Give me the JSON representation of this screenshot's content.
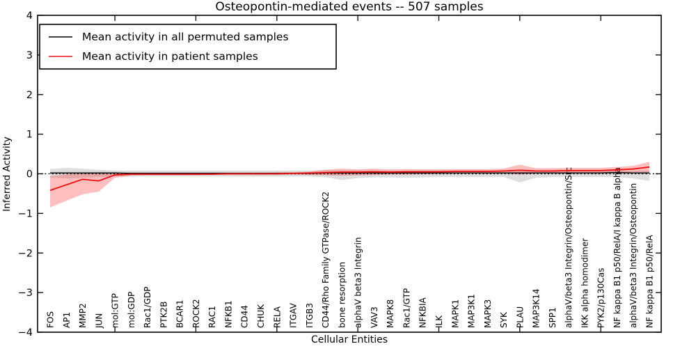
{
  "title": "Osteopontin-mediated events -- 507 samples",
  "chart_data": {
    "type": "line",
    "title": "Osteopontin-mediated events -- 507 samples",
    "xlabel": "Cellular Entities",
    "ylabel": "Inferred Activity",
    "ylim": [
      -4,
      4
    ],
    "ytick_values": [
      4,
      3,
      2,
      1,
      0,
      -1,
      -2,
      -3,
      -4
    ],
    "grid": false,
    "legend_position": "upper left",
    "zero_line": {
      "style": "dotted",
      "color": "#000000",
      "y": 0
    },
    "major_xtick_category_indices": [
      4,
      9,
      14,
      19,
      24,
      29,
      34
    ],
    "categories": [
      "FOS",
      "AP1",
      "MMP2",
      "JUN",
      "mol:GTP",
      "mol:GDP",
      "Rac1/GDP",
      "PTK2B",
      "BCAR1",
      "ROCK2",
      "RAC1",
      "NFKB1",
      "CD44",
      "CHUK",
      "RELA",
      "ITGAV",
      "ITGB3",
      "CD44/Rho Family GTPase/ROCK2",
      "bone resorption",
      "alphaV beta3 Integrin",
      "VAV3",
      "MAPK8",
      "Rac1/GTP",
      "NFKBIA",
      "ILK",
      "MAPK1",
      "MAP3K1",
      "MAPK3",
      "SYK",
      "PLAU",
      "MAP3K14",
      "SPP1",
      "alphaV/beta3 Integrin/Osteopontin/Src",
      "IKK alpha homodimer",
      "PYK2/p130Cas",
      "NF kappa B1 p50/RelA/I kappa B alpha",
      "alphaV/beta3 Integrin/Osteopontin",
      "NF kappa B1 p50/RelA"
    ],
    "series": [
      {
        "name": "Mean activity in all permuted samples",
        "color": "#000000",
        "line_width": 1.5,
        "band_color": "#000000",
        "band_opacity": 0.13,
        "values": [
          0.02,
          0.02,
          0.02,
          0.02,
          0.02,
          0.01,
          0.01,
          0.01,
          0.01,
          0.01,
          0.01,
          0.01,
          0.01,
          0.01,
          0.01,
          0.01,
          0.01,
          0.02,
          0.02,
          0.02,
          0.02,
          0.02,
          0.02,
          0.02,
          0.02,
          0.02,
          0.02,
          0.02,
          0.02,
          0.02,
          0.02,
          0.02,
          0.02,
          0.02,
          0.02,
          0.03,
          0.02,
          0.02
        ],
        "band_upper": [
          0.12,
          0.15,
          0.13,
          0.1,
          0.08,
          0.08,
          0.08,
          0.08,
          0.08,
          0.08,
          0.08,
          0.08,
          0.08,
          0.08,
          0.08,
          0.08,
          0.08,
          0.09,
          0.09,
          0.09,
          0.09,
          0.08,
          0.08,
          0.08,
          0.08,
          0.08,
          0.08,
          0.08,
          0.08,
          0.08,
          0.08,
          0.08,
          0.08,
          0.08,
          0.08,
          0.08,
          0.07,
          0.08
        ],
        "band_lower": [
          -0.1,
          -0.12,
          -0.1,
          -0.08,
          -0.07,
          -0.07,
          -0.07,
          -0.07,
          -0.07,
          -0.07,
          -0.07,
          -0.07,
          -0.07,
          -0.07,
          -0.07,
          -0.07,
          -0.07,
          -0.08,
          -0.16,
          -0.11,
          -0.09,
          -0.09,
          -0.1,
          -0.09,
          -0.08,
          -0.08,
          -0.08,
          -0.08,
          -0.08,
          -0.22,
          -0.1,
          -0.08,
          -0.08,
          -0.08,
          -0.08,
          -0.08,
          -0.12,
          -0.18
        ]
      },
      {
        "name": "Mean activity in patient samples",
        "color": "#ee1111",
        "line_width": 1.8,
        "band_color": "#ff0000",
        "band_opacity": 0.25,
        "values": [
          -0.42,
          -0.28,
          -0.14,
          -0.18,
          -0.03,
          -0.01,
          -0.01,
          -0.01,
          -0.01,
          -0.01,
          -0.01,
          0,
          0,
          0,
          0,
          0.01,
          0.02,
          0.03,
          0.04,
          0.04,
          0.05,
          0.04,
          0.05,
          0.05,
          0.05,
          0.06,
          0.06,
          0.06,
          0.07,
          0.09,
          0.07,
          0.07,
          0.08,
          0.08,
          0.08,
          0.1,
          0.12,
          0.17
        ],
        "band_upper": [
          -0.06,
          -0.02,
          0.02,
          0.03,
          0.03,
          0.02,
          0.02,
          0.02,
          0.02,
          0.02,
          0.02,
          0.02,
          0.02,
          0.02,
          0.03,
          0.04,
          0.05,
          0.1,
          0.13,
          0.11,
          0.13,
          0.11,
          0.12,
          0.11,
          0.11,
          0.12,
          0.12,
          0.12,
          0.13,
          0.23,
          0.14,
          0.14,
          0.15,
          0.15,
          0.15,
          0.17,
          0.2,
          0.3
        ],
        "band_lower": [
          -0.85,
          -0.68,
          -0.52,
          -0.45,
          -0.1,
          -0.05,
          -0.04,
          -0.04,
          -0.04,
          -0.04,
          -0.03,
          -0.03,
          -0.03,
          -0.03,
          -0.03,
          -0.02,
          -0.03,
          -0.04,
          -0.05,
          -0.04,
          -0.03,
          -0.02,
          -0.02,
          -0.01,
          0,
          0.01,
          0.01,
          0.01,
          0.02,
          -0.02,
          0.01,
          0.01,
          0.02,
          0.02,
          0.02,
          0.03,
          0.04,
          0.04
        ]
      }
    ]
  },
  "legend": {
    "entries": [
      {
        "label": "Mean activity in all permuted samples",
        "color": "#000000"
      },
      {
        "label": "Mean activity in patient samples",
        "color": "#ee1111"
      }
    ]
  },
  "colors": {
    "frame": "#000000",
    "background": "#ffffff",
    "permuted_band": "#d9d9d9",
    "patient_band": "#f5a9a9"
  }
}
